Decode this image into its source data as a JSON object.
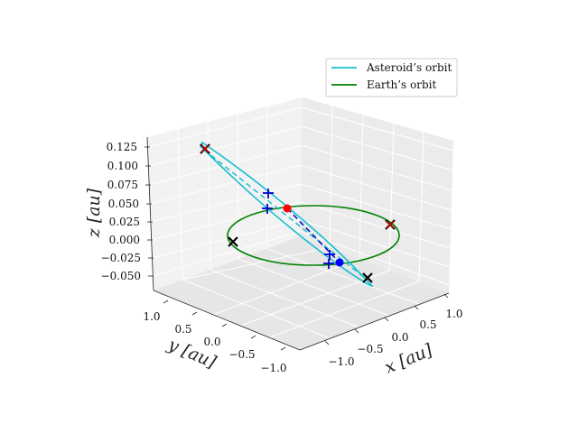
{
  "chart_data": {
    "type": "line3d",
    "xlabel": "x [au]",
    "ylabel": "y [au]",
    "zlabel": "z [au]",
    "x_ticks": [
      "−1.0",
      "−0.5",
      "0.0",
      "0.5",
      "1.0"
    ],
    "y_ticks": [
      "1.0",
      "0.5",
      "0.0",
      "−0.5",
      "−1.0"
    ],
    "z_ticks": [
      "0.125",
      "0.100",
      "0.075",
      "0.050",
      "0.025",
      "0.000",
      "−0.025",
      "−0.050"
    ],
    "legend": {
      "placement": "top-right",
      "entries": [
        {
          "label": "Asteroid’s orbit",
          "color": "#17becf"
        },
        {
          "label": "Earth’s orbit",
          "color": "#008000"
        }
      ]
    },
    "series": [
      {
        "name": "Asteroid’s orbit",
        "color": "#17becf",
        "style": "solid",
        "shape": "thin inclined ellipse"
      },
      {
        "name": "Earth’s orbit",
        "color": "#008000",
        "style": "solid",
        "shape": "circle, radius 1 au, z = 0"
      }
    ],
    "dashed_lines": [
      {
        "color": "#17becf"
      },
      {
        "color": "#0000cc"
      }
    ],
    "markers": [
      {
        "kind": "x",
        "color": "#000000",
        "label": "black cross"
      },
      {
        "kind": "x",
        "color": "#cc0000",
        "label": "red cross"
      },
      {
        "kind": "+",
        "color": "#0000cc",
        "label": "blue plus"
      },
      {
        "kind": "dot",
        "color": "#ff0000",
        "label": "red dot"
      },
      {
        "kind": "dot",
        "color": "#0000ff",
        "label": "blue dot"
      }
    ],
    "grid": true
  }
}
